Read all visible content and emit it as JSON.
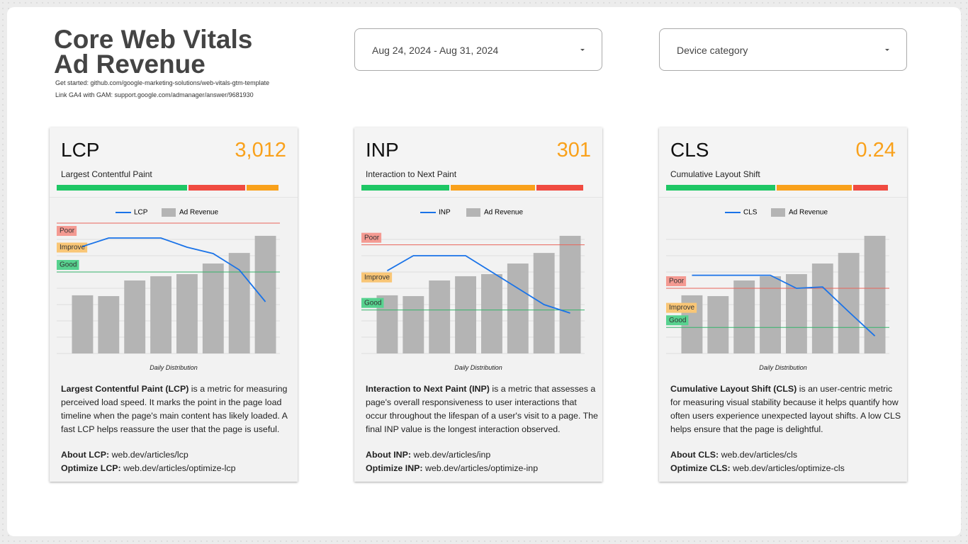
{
  "header": {
    "title": [
      "Core Web Vitals",
      "Ad Revenue"
    ],
    "links": [
      "Get started: github.com/google-marketing-solutions/web-vitals-gtm-template",
      "Link GA4 with GAM: support.google.com/admanager/answer/9681930"
    ]
  },
  "filters": {
    "date_range": "Aug 24, 2024 - Aug 31, 2024",
    "device": "Device category"
  },
  "cards": [
    {
      "metric": "LCP",
      "score": "3,012",
      "name": "Largest Contentful Paint",
      "rating_bar": [
        {
          "color": "#1ec765",
          "value": 59.4
        },
        {
          "color": "#f04b41",
          "value": 25.9
        },
        {
          "color": "#f9a11b",
          "value": 14.7
        }
      ],
      "chart": {
        "type": "bar-line",
        "ylim": [
          0,
          4000
        ],
        "y2lim": [
          0,
          8
        ],
        "y2ticks": [
          0,
          1,
          2,
          3,
          4,
          5,
          6,
          7
        ],
        "poor": {
          "label": "Poor",
          "value": 4000
        },
        "improve": {
          "label": "Improve"
        },
        "good": {
          "label": "Good",
          "value": 2500
        },
        "series": [
          {
            "name": "LCP",
            "color": "#1a73e8",
            "values": [
              3283,
              3543,
              3543,
              3543,
              3261,
              3065,
              2565,
              1587
            ]
          },
          {
            "name": "Ad Revenue",
            "color": "#b4b4b4",
            "axis": "y2",
            "values": [
              3.57,
              3.52,
              4.48,
              4.74,
              4.87,
              5.52,
              6.17,
              7.22
            ]
          }
        ],
        "caption": "Daily Distribution"
      },
      "description": {
        "term": "Largest Contentful Paint (LCP)",
        "text": " is a metric for measuring perceived load speed. It marks the point in the page load timeline when the page's main content has likely loaded. A fast LCP helps reassure the user that the page is useful."
      },
      "links": [
        {
          "label": "About LCP:",
          "url": "web.dev/articles/lcp"
        },
        {
          "label": "Optimize LCP:",
          "url": "web.dev/articles/optimize-lcp"
        }
      ]
    },
    {
      "metric": "INP",
      "score": "301",
      "name": "Interaction to Next Paint",
      "rating_bar": [
        {
          "color": "#1ec765",
          "value": 40.2
        },
        {
          "color": "#f9a11b",
          "value": 38.6
        },
        {
          "color": "#f04b41",
          "value": 21.2
        }
      ],
      "chart": {
        "type": "bar-line",
        "ylim": [
          0,
          600
        ],
        "y2lim": [
          0,
          8
        ],
        "y2ticks": [
          0,
          1,
          2,
          3,
          4,
          5,
          6,
          7
        ],
        "poor": {
          "label": "Poor",
          "value": 500
        },
        "improve": {
          "label": "Improve"
        },
        "good": {
          "label": "Good",
          "value": 200
        },
        "series": [
          {
            "name": "INP",
            "color": "#1a73e8",
            "values": [
              381,
              450,
              450,
              450,
              375,
              300,
              225,
              186
            ]
          },
          {
            "name": "Ad Revenue",
            "color": "#b4b4b4",
            "axis": "y2",
            "values": [
              3.57,
              3.52,
              4.48,
              4.74,
              4.87,
              5.52,
              6.17,
              7.22
            ]
          }
        ],
        "caption": "Daily Distribution"
      },
      "description": {
        "term": "Interaction to Next Paint (INP)",
        "text": " is a metric that assesses a page's overall responsiveness to user interactions that occur throughout the lifespan of a user's visit to a page. The final INP value is the longest interaction observed."
      },
      "links": [
        {
          "label": "About INP:",
          "url": "web.dev/articles/inp"
        },
        {
          "label": "Optimize INP:",
          "url": "web.dev/articles/optimize-inp"
        }
      ]
    },
    {
      "metric": "CLS",
      "score": "0.24",
      "name": "Cumulative Layout Shift",
      "rating_bar": [
        {
          "color": "#1ec765",
          "value": 49.7
        },
        {
          "color": "#f9a11b",
          "value": 34.6
        },
        {
          "color": "#f04b41",
          "value": 15.7
        }
      ],
      "chart": {
        "type": "bar-line",
        "ylim": [
          0,
          0.5
        ],
        "y2lim": [
          0,
          8
        ],
        "y2ticks": [
          0,
          1,
          2,
          3,
          4,
          5,
          6,
          7
        ],
        "poor": {
          "label": "Poor",
          "value": 0.25
        },
        "improve": {
          "label": "Improve"
        },
        "good": {
          "label": "Good",
          "value": 0.1
        },
        "series": [
          {
            "name": "CLS",
            "color": "#1a73e8",
            "values": [
              0.3,
              0.3,
              0.3,
              0.3,
              0.25,
              0.255,
              0.16,
              0.067
            ]
          },
          {
            "name": "Ad Revenue",
            "color": "#b4b4b4",
            "axis": "y2",
            "values": [
              3.57,
              3.52,
              4.48,
              4.74,
              4.87,
              5.52,
              6.17,
              7.22
            ]
          }
        ],
        "caption": "Daily Distribution"
      },
      "description": {
        "term": "Cumulative Layout Shift (CLS)",
        "text": " is an user-centric metric for measuring visual stability because it helps quantify how often users experience unexpected layout shifts. A low CLS helps ensure that the page is delightful."
      },
      "links": [
        {
          "label": "About CLS:",
          "url": "web.dev/articles/cls"
        },
        {
          "label": "Optimize CLS:",
          "url": "web.dev/articles/optimize-cls"
        }
      ]
    }
  ]
}
